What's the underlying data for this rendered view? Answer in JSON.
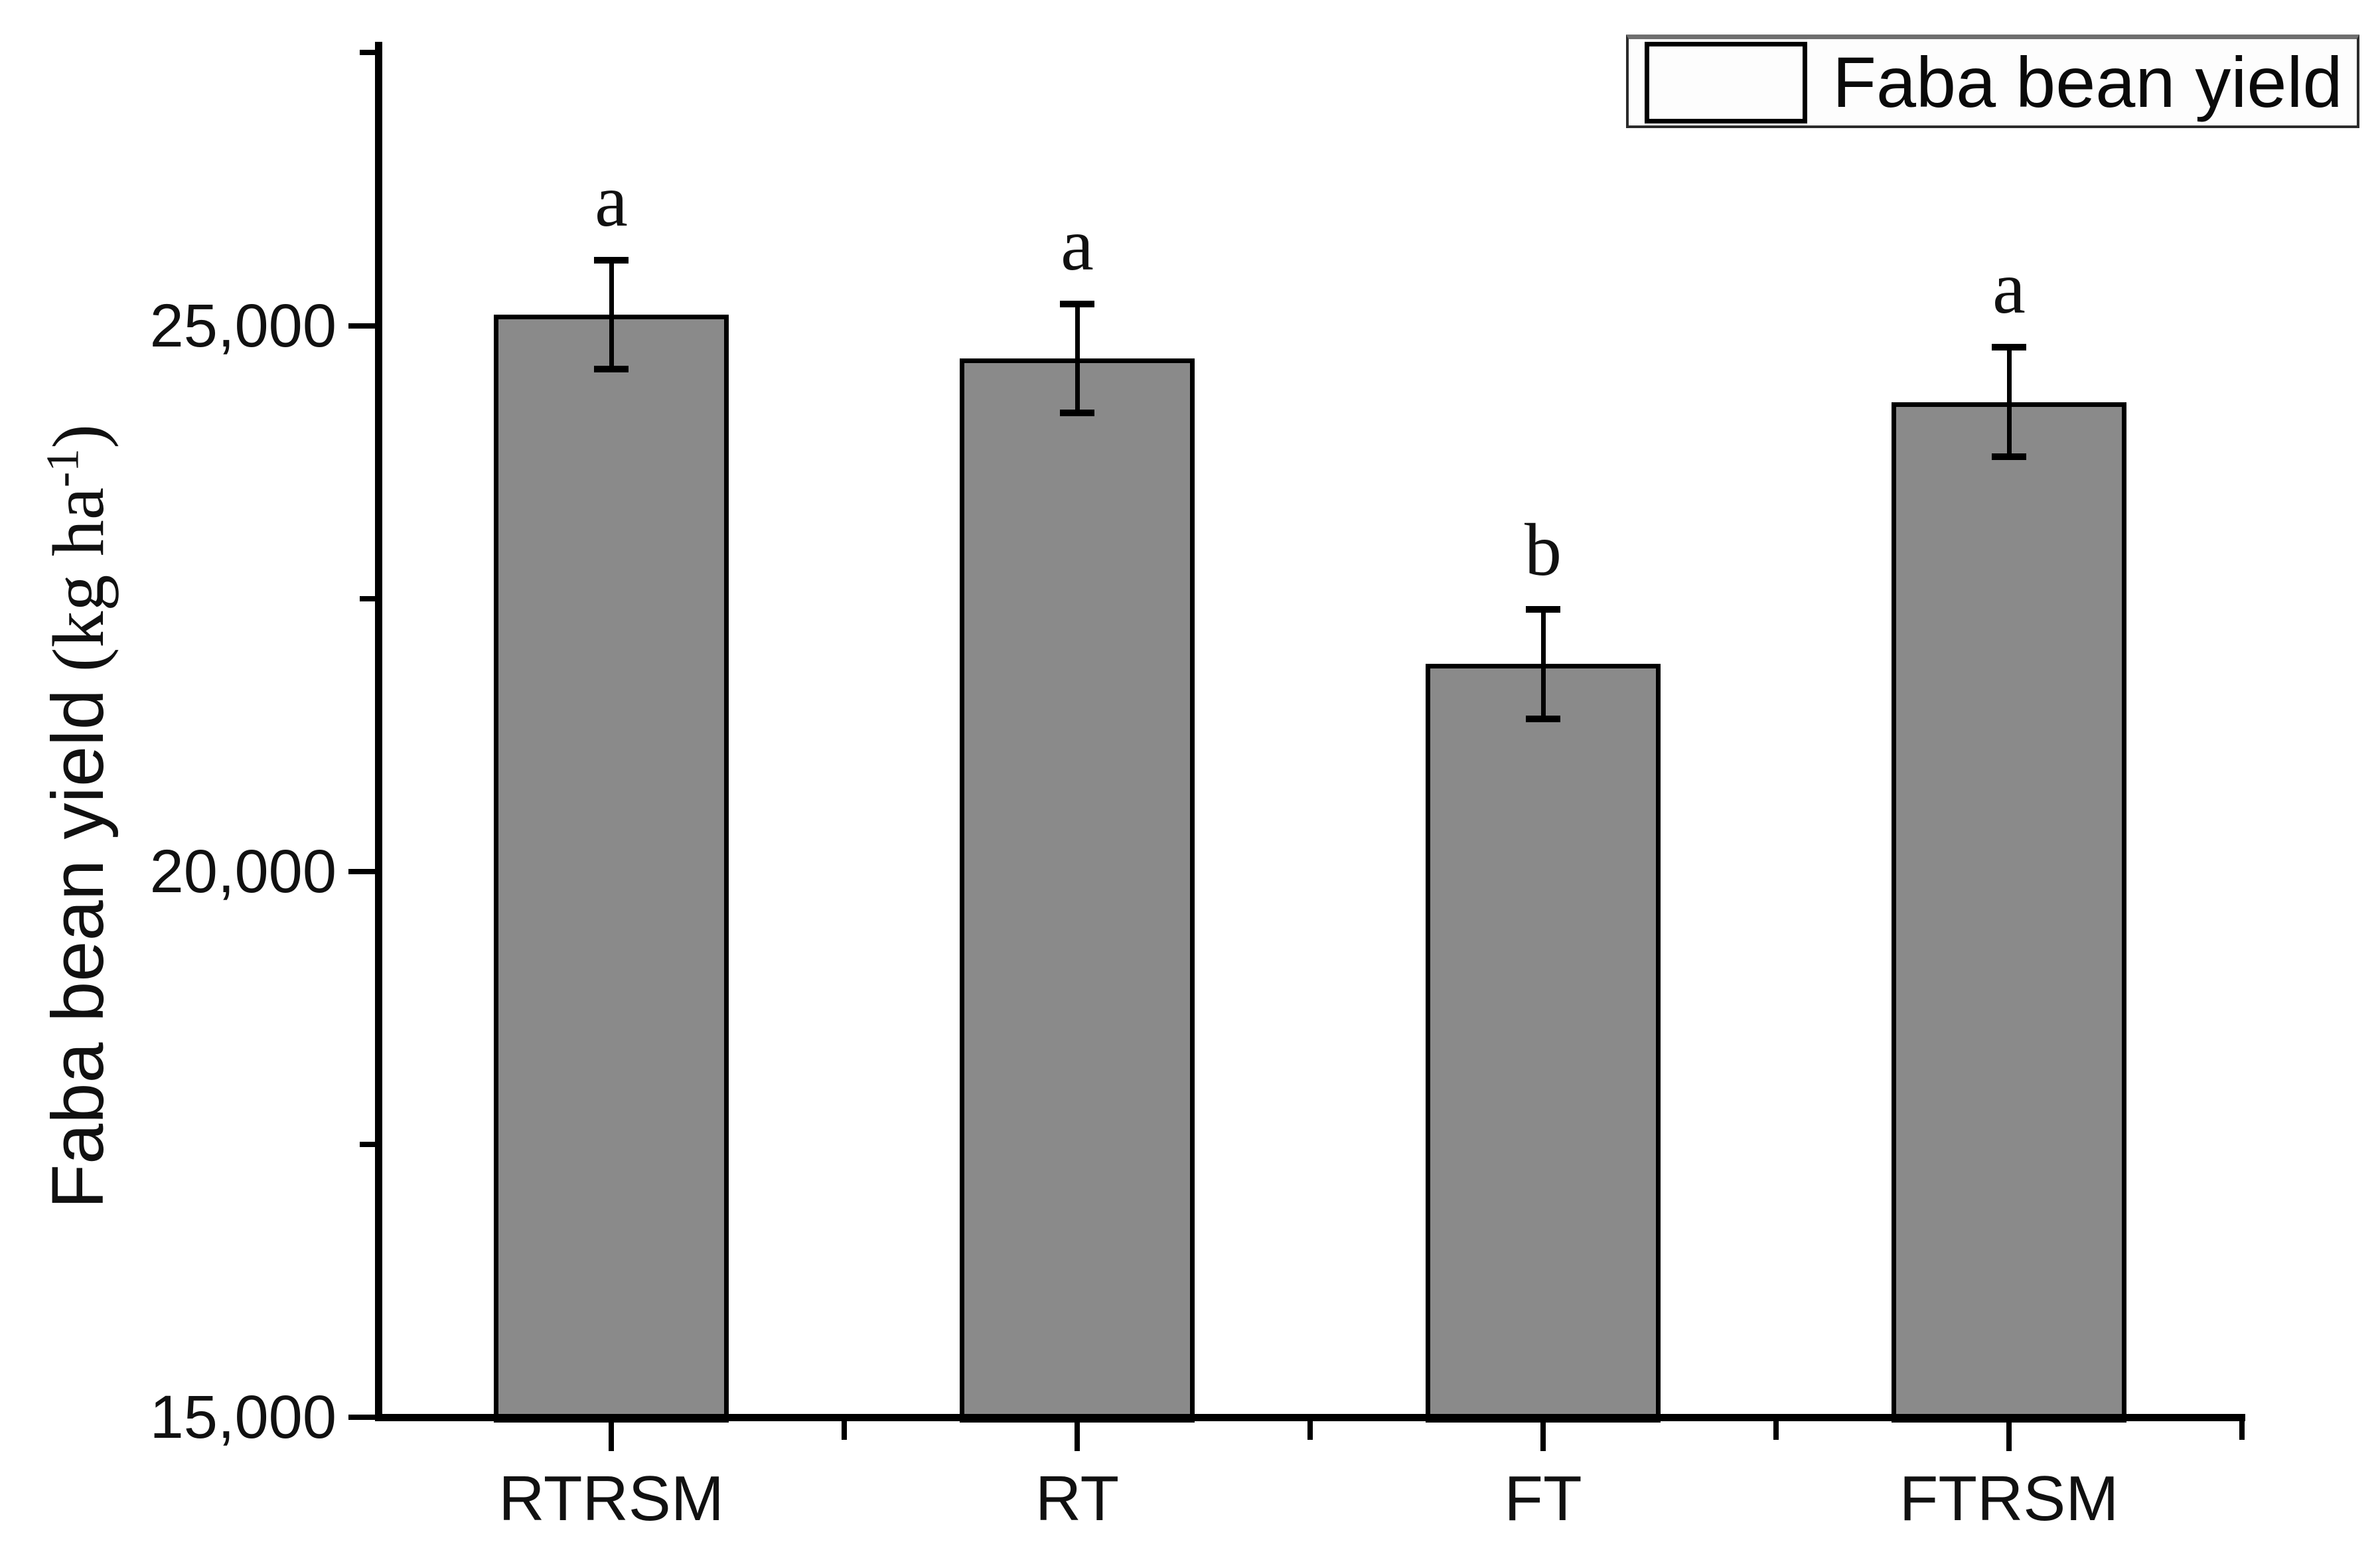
{
  "chart_data": {
    "type": "bar",
    "title": "",
    "ylabel": "Faba bean yield (kg ha-1)",
    "ylabel_main": "Faba bean yield",
    "ylabel_unit_prefix": "(kg ha",
    "ylabel_unit_sup": "-1",
    "ylabel_unit_suffix": ")",
    "xlabel": "",
    "categories": [
      "RTRSM",
      "RT",
      "FT",
      "FTRSM"
    ],
    "series": [
      {
        "name": "Faba bean yield",
        "values": [
          25100,
          24700,
          21900,
          24300
        ],
        "errors": [
          500,
          500,
          500,
          500
        ],
        "sig_letters": [
          "a",
          "a",
          "b",
          "a"
        ]
      }
    ],
    "ylim": [
      15000,
      27600
    ],
    "yticks": [
      {
        "value": 15000,
        "label": "15,000"
      },
      {
        "value": 20000,
        "label": "20,000"
      },
      {
        "value": 25000,
        "label": "25,000"
      }
    ],
    "yticks_minor": [
      17500,
      22500,
      27500
    ],
    "grid": false,
    "legend": {
      "label": "Faba bean yield",
      "position": "top-right"
    },
    "colors": {
      "bar_fill": "#8a8a8a",
      "bar_border": "#000000",
      "axis": "#000000",
      "text": "#111111",
      "legend_swatch": "#8a8a8a"
    }
  }
}
